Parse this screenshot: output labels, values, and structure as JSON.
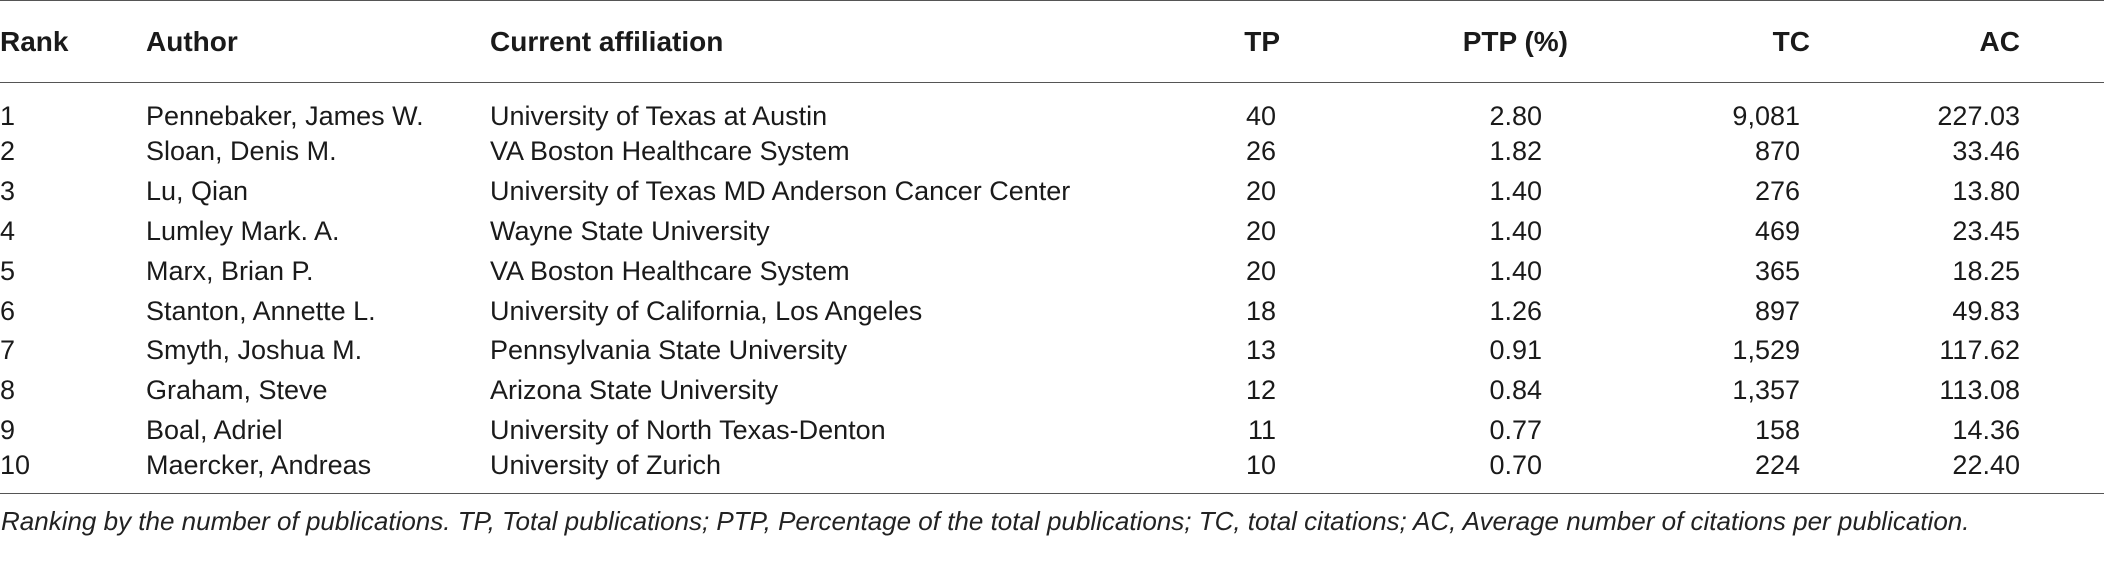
{
  "columns": {
    "rank": "Rank",
    "author": "Author",
    "affiliation": "Current affiliation",
    "tp": "TP",
    "ptp": "PTP (%)",
    "tc": "TC",
    "ac": "AC"
  },
  "rows": [
    {
      "rank": "1",
      "author": "Pennebaker, James W.",
      "affiliation": "University of Texas at Austin",
      "tp": "40",
      "ptp": "2.80",
      "tc": "9,081",
      "ac": "227.03"
    },
    {
      "rank": "2",
      "author": "Sloan, Denis M.",
      "affiliation": "VA Boston Healthcare System",
      "tp": "26",
      "ptp": "1.82",
      "tc": "870",
      "ac": "33.46"
    },
    {
      "rank": "3",
      "author": "Lu, Qian",
      "affiliation": "University of Texas MD Anderson Cancer Center",
      "tp": "20",
      "ptp": "1.40",
      "tc": "276",
      "ac": "13.80"
    },
    {
      "rank": "4",
      "author": "Lumley Mark. A.",
      "affiliation": "Wayne State University",
      "tp": "20",
      "ptp": "1.40",
      "tc": "469",
      "ac": "23.45"
    },
    {
      "rank": "5",
      "author": "Marx, Brian P.",
      "affiliation": "VA Boston Healthcare System",
      "tp": "20",
      "ptp": "1.40",
      "tc": "365",
      "ac": "18.25"
    },
    {
      "rank": "6",
      "author": "Stanton, Annette L.",
      "affiliation": "University of California, Los Angeles",
      "tp": "18",
      "ptp": "1.26",
      "tc": "897",
      "ac": "49.83"
    },
    {
      "rank": "7",
      "author": "Smyth, Joshua M.",
      "affiliation": "Pennsylvania State University",
      "tp": "13",
      "ptp": "0.91",
      "tc": "1,529",
      "ac": "117.62"
    },
    {
      "rank": "8",
      "author": "Graham, Steve",
      "affiliation": "Arizona State University",
      "tp": "12",
      "ptp": "0.84",
      "tc": "1,357",
      "ac": "113.08"
    },
    {
      "rank": "9",
      "author": "Boal, Adriel",
      "affiliation": "University of North Texas-Denton",
      "tp": "11",
      "ptp": "0.77",
      "tc": "158",
      "ac": "14.36"
    },
    {
      "rank": "10",
      "author": "Maercker, Andreas",
      "affiliation": "University of Zurich",
      "tp": "10",
      "ptp": "0.70",
      "tc": "224",
      "ac": "22.40"
    }
  ],
  "footnote": "Ranking by the number of publications. TP, Total publications; PTP, Percentage of the total publications; TC, total citations; AC, Average number of citations per publication."
}
